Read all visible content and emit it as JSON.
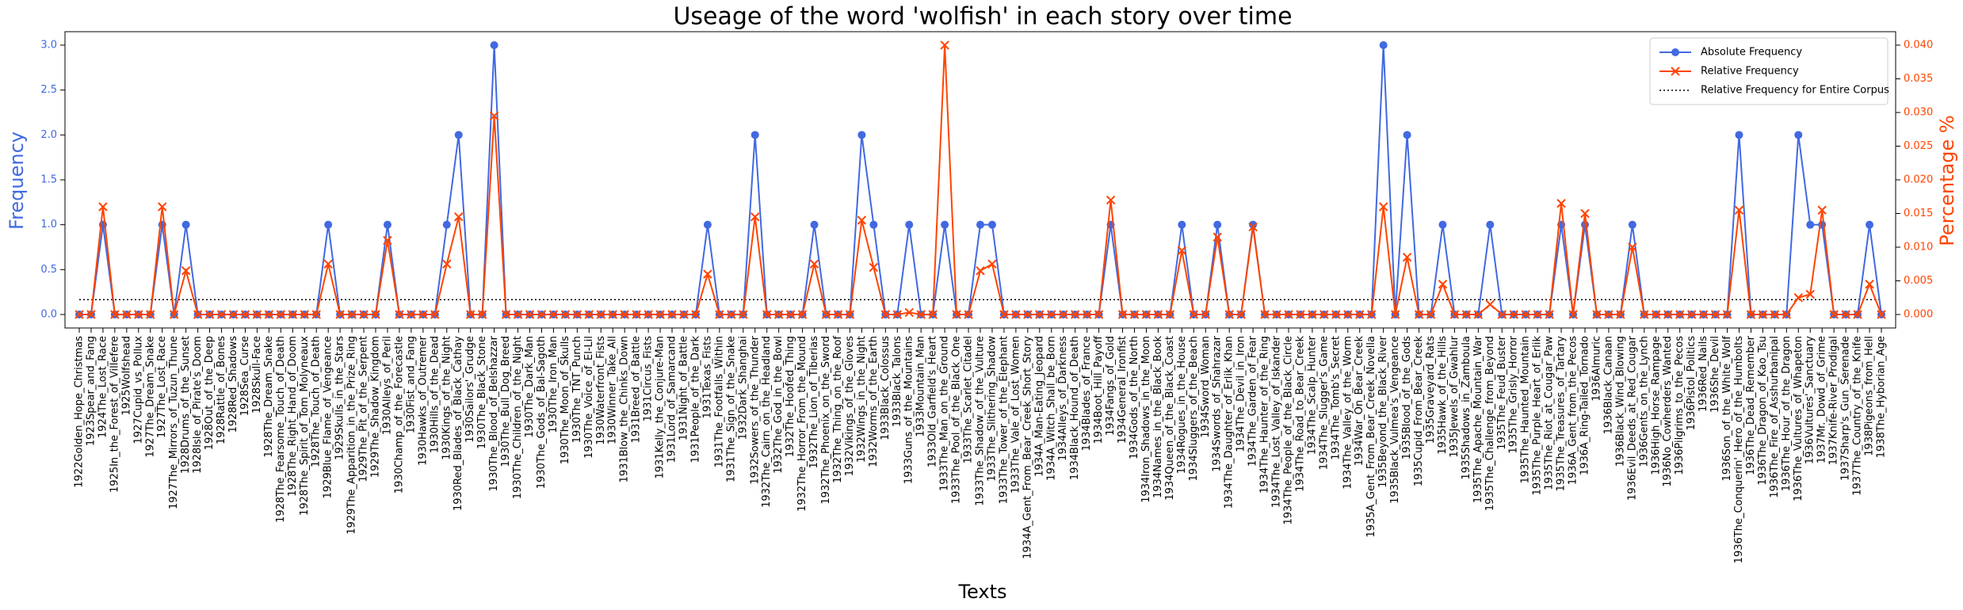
{
  "chart_data": {
    "type": "line",
    "title": "Useage of the word 'wolfish' in each story over time",
    "xlabel": "Texts",
    "ylabel": "Frequency",
    "y2label": "Percentage %",
    "categories": [
      "1922Golden_Hope_Christmas",
      "1923Spear_and_Fang",
      "1924The_Lost_Race",
      "1925In_the_Forest_of_Villefere",
      "1925Wolfshead",
      "1927Cupid_vs_Pollux",
      "1927The_Dream_Snake",
      "1927The_Lost_Race",
      "1927The_Mirrors_of_Tuzun_Thune",
      "1928Drums_of_the_Sunset",
      "1928Isle_of_Pirate's_Doom",
      "1928Out_of_the_Deep",
      "1928Rattle_of_Bones",
      "1928Red_Shadows",
      "1928Sea_Curse",
      "1928Skull-Face",
      "1928The_Dream_Snake",
      "1928The_Fearsome_Touch_of_Death",
      "1928The_Right_Hand_of_Doom",
      "1928The_Spirit_of_Tom_Molyneaux",
      "1928The_Touch_of_Death",
      "1929Blue_Flame_of_Vengeance",
      "1929Skulls_in_the_Stars",
      "1929The_Apparition_in_the_Prize_Ring",
      "1929The_Pit_of_the_Serpent",
      "1929The_Shadow_Kingdom",
      "1930Alleys_of_Peril",
      "1930Champ_of_the_Forecastle",
      "1930Fist_and_Fang",
      "1930Hawks_of_Outremer",
      "1930Hills_of_the_Dead",
      "1930Kings_of_the_Night",
      "1930Red_Blades_of_Black_Cathay",
      "1930Sailors'_Grudge",
      "1930The_Black_Stone",
      "1930The_Blood_of_Belshazzar",
      "1930The_Bull_Dog_Breed",
      "1930The_Children_of_the_Night",
      "1930The_Dark_Man",
      "1930The_Gods_of_Bal-Sagoth",
      "1930The_Iron_Man",
      "1930The_Moon_of_Skulls",
      "1930The_TNT_Punch",
      "1930The_Voice_of_El-Lil",
      "1930Waterfront_Fists",
      "1930Winner_Take_All",
      "1931Blow_the_Chinks_Down",
      "1931Breed_of_Battle",
      "1931Circus_Fists",
      "1931Kelly_the_Conjure-Man",
      "1931Lord_of_Samarcand",
      "1931Night_of_Battle",
      "1931People_of_the_Dark",
      "1931Texas_Fists",
      "1931The_Footfalls_Within",
      "1931The_Sign_of_the_Snake",
      "1932Dark_Shanghai",
      "1932Sowers_of_the_Thunder",
      "1932The_Cairn_on_the_Headland",
      "1932The_God_in_the_Bowl",
      "1932The_Hoofed_Thing",
      "1932The_Horror_From_the_Mound",
      "1932The_Lion_of_Tiberias",
      "1932The_Phoenix_on_the_Sword",
      "1932The_Thing_on_the_Roof",
      "1932Vikings_of_the_Gloves",
      "1932Wings_in_the_Night",
      "1932Worms_of_the_Earth",
      "1933Black_Colossus",
      "1933Black_Talons",
      "1933Guns_of_the_Mountains",
      "1933Mountain_Man",
      "1933Old_Garfield's_Heart",
      "1933The_Man_on_the_Ground",
      "1933The_Pool_of_the_Black_One",
      "1933The_Scarlet_Citadel",
      "1933The_Shadow_of_the_Vulture",
      "1933The_Slithering_Shadow",
      "1933The_Tower_of_the_Elephant",
      "1933The_Vale_of_Lost_Women",
      "1934A_Gent_From_Bear_Creek_Short_Story",
      "1934A_Man-Eating_Jeopard",
      "1934A_Witch_Shall_be_Born",
      "1934Alleys_of_Darkness",
      "1934Black_Hound_of_Death",
      "1934Blades_of_France",
      "1934Boot_Hill_Payoff",
      "1934Fangs_of_Gold",
      "1934General_Ironfist",
      "1934Gods_of_the_North",
      "1934Iron_Shadows_in_the_Moon",
      "1934Names_in_the_Black_Book",
      "1934Queen_of_the_Black_Coast",
      "1934Rogues_in_the_House",
      "1934Sluggers_of_the_Beach",
      "1934Sword_Woman",
      "1934Swords_of_Shahrazar",
      "1934The_Daughter_of_Erlik_Khan",
      "1934The_Devil_in_Iron",
      "1934The_Garden_of_Fear",
      "1934The_Haunter_of_the_Ring",
      "1934The_Lost_Valley_of_Iskander",
      "1934The_People_of_the_Black_Circle",
      "1934The_Road_to_Bear_Creek",
      "1934The_Scalp_Hunter",
      "1934The_Slugger's_Game",
      "1934The_Tomb's_Secret",
      "1934The_Valley_of_the_Worm",
      "1934War_On_Bear_Creek",
      "1935A_Gent_From_Bear_Creek_Novella",
      "1935Beyond_the_Black_River",
      "1935Black_Vulmea's_Vengeance",
      "1935Blood_of_the_Gods",
      "1935Cupid_From_Bear_Creek",
      "1935Graveyard_Rats",
      "1935Hawk_of_the_Hills",
      "1935Jewels_of_Gwahlur",
      "1935Shadows_in_Zamboula",
      "1935The_Apache_Mountain_War",
      "1935The_Challenge_from_Beyond",
      "1935The_Feud_Buster",
      "1935The_Grisly_Horror",
      "1935The_Haunted_Mountain",
      "1935The_Purple_Heart_of_Erlik",
      "1935The_Riot_at_Cougar_Paw",
      "1935The_Treasures_of_Tartary",
      "1936A_Gent_from_the_Pecos",
      "1936A_Ring-Tailed_Tornado",
      "1936Almuric",
      "1936Black_Canaan",
      "1936Black_Wind_Blowing",
      "1936Evil_Deeds_at_Red_Cougar",
      "1936Gents_on_the_Lynch",
      "1936High_Horse_Rampage",
      "1936No_Cowherders_Wanted",
      "1936Pilgrims_to_the_Pecos",
      "1936Pistol_Politics",
      "1936Red_Nails",
      "1936She_Devil",
      "1936Son_of_the_White_Wolf",
      "1936The_Conquerin'_Hero_of_the_Humbolts",
      "1936The_Dead_Remember",
      "1936The_Dragon_of_Kao_Tsu",
      "1936The_Fire_of_Asshurbanipal",
      "1936The_Hour_of_the_Dragon",
      "1936The_Vultures_of_Whapeton",
      "1936Vultures'_Sanctuary",
      "1937Mr._Dowd_of_Grime",
      "1937Knife-River_Prodigal",
      "1937Sharp's_Gun_Serenade",
      "1937The_Country_of_the_Knife",
      "1938Pigeons_from_Hell",
      "1938The_Hyborian_Age"
    ],
    "series": [
      {
        "name": "Absolute Frequency",
        "color": "#4169e1",
        "marker": "o",
        "values": [
          0,
          0,
          1,
          0,
          0,
          0,
          0,
          1,
          0,
          1,
          0,
          0,
          0,
          0,
          0,
          0,
          0,
          0,
          0,
          0,
          0,
          1,
          0,
          0,
          0,
          0,
          1,
          0,
          0,
          0,
          0,
          1,
          2,
          0,
          0,
          3,
          0,
          0,
          0,
          0,
          0,
          0,
          0,
          0,
          0,
          0,
          0,
          0,
          0,
          0,
          0,
          0,
          0,
          1,
          0,
          0,
          0,
          2,
          0,
          0,
          0,
          0,
          1,
          0,
          0,
          0,
          2,
          1,
          0,
          0,
          1,
          0,
          0,
          1,
          0,
          0,
          1,
          1,
          0,
          0,
          0,
          0,
          0,
          0,
          0,
          0,
          0,
          1,
          0,
          0,
          0,
          0,
          0,
          1,
          0,
          0,
          1,
          0,
          0,
          1,
          0,
          0,
          0,
          0,
          0,
          0,
          0,
          0,
          0,
          0,
          3,
          0,
          2,
          0,
          0,
          1,
          0,
          0,
          0,
          1,
          0,
          0,
          0,
          0,
          0,
          1,
          0,
          1,
          0,
          0,
          0,
          1,
          0,
          0,
          0,
          0,
          0,
          0,
          0,
          0,
          2,
          0,
          0,
          0,
          0,
          2,
          1,
          1,
          0,
          0,
          0,
          1,
          0
        ]
      },
      {
        "name": "Relative Frequency",
        "color": "#ff4500",
        "marker": "x",
        "axis": "y2",
        "values": [
          0,
          0,
          0.016,
          0,
          0,
          0,
          0,
          0.016,
          0,
          0.0065,
          0,
          0,
          0,
          0,
          0,
          0,
          0,
          0,
          0,
          0,
          0,
          0.0075,
          0,
          0,
          0,
          0,
          0.011,
          0,
          0,
          0,
          0,
          0.0075,
          0.0145,
          0,
          0,
          0.0295,
          0,
          0,
          0,
          0,
          0,
          0,
          0,
          0,
          0,
          0,
          0,
          0,
          0,
          0,
          0,
          0,
          0,
          0.006,
          0,
          0,
          0,
          0.0145,
          0,
          0,
          0,
          0,
          0.0075,
          0,
          0,
          0,
          0.014,
          0.007,
          0,
          0,
          0.0003,
          0,
          0,
          0.04,
          0,
          0,
          0.0065,
          0.0075,
          0,
          0,
          0,
          0,
          0,
          0,
          0,
          0,
          0,
          0.017,
          0,
          0,
          0,
          0,
          0,
          0.0095,
          0,
          0,
          0.0115,
          0,
          0,
          0.013,
          0,
          0,
          0,
          0,
          0,
          0,
          0,
          0,
          0,
          0,
          0.016,
          0,
          0.0085,
          0,
          0,
          0.0045,
          0,
          0,
          0,
          0.0015,
          0,
          0,
          0,
          0,
          0,
          0.0165,
          0,
          0.015,
          0,
          0,
          0,
          0.01,
          0,
          0,
          0,
          0,
          0,
          0,
          0,
          0,
          0.0155,
          0,
          0,
          0,
          0,
          0.0025,
          0.003,
          0.0155,
          0,
          0,
          0,
          0.0045,
          0
        ]
      }
    ],
    "reference_lines": [
      {
        "name": "Relative Frequency for Entire Corpus",
        "value": 0.0022,
        "axis": "y2",
        "color": "#000000",
        "dash": "dotted"
      }
    ],
    "ylim": [
      -0.15,
      3.15
    ],
    "yticks": [
      {
        "value": 0,
        "label": "0.0"
      },
      {
        "value": 0.5,
        "label": "0.5"
      },
      {
        "value": 1,
        "label": "1.0"
      },
      {
        "value": 1.5,
        "label": "1.5"
      },
      {
        "value": 2,
        "label": "2.0"
      },
      {
        "value": 2.5,
        "label": "2.5"
      },
      {
        "value": 3,
        "label": "3.0"
      }
    ],
    "y2lim": [
      -0.002,
      0.042
    ],
    "y2ticks": [
      {
        "value": 0,
        "label": "0.000"
      },
      {
        "value": 0.005,
        "label": "0.005"
      },
      {
        "value": 0.01,
        "label": "0.010"
      },
      {
        "value": 0.015,
        "label": "0.015"
      },
      {
        "value": 0.02,
        "label": "0.020"
      },
      {
        "value": 0.025,
        "label": "0.025"
      },
      {
        "value": 0.03,
        "label": "0.030"
      },
      {
        "value": 0.035,
        "label": "0.035"
      },
      {
        "value": 0.04,
        "label": "0.040"
      }
    ],
    "legend": "upper right",
    "grid": false
  }
}
